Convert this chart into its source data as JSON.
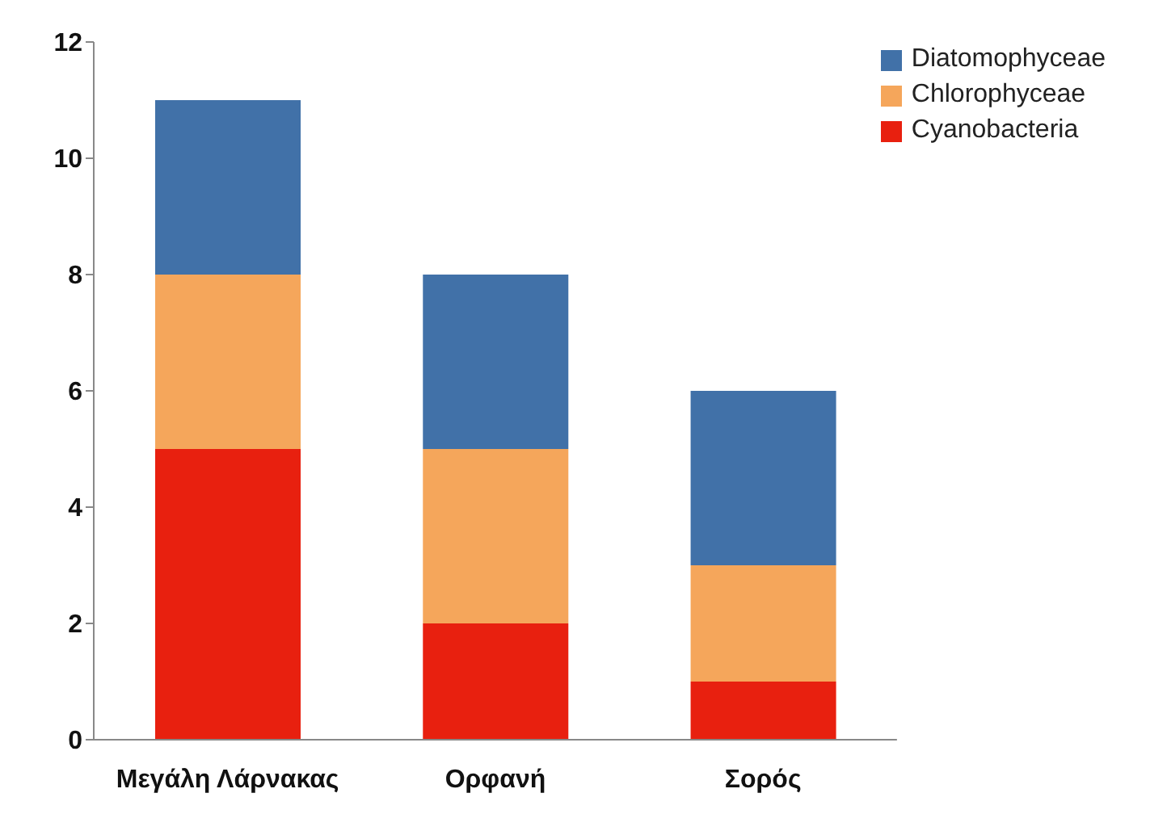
{
  "chart_data": {
    "type": "bar",
    "stacked": true,
    "categories": [
      "Μεγάλη Λάρνακας",
      "Ορφανή",
      "Σορός"
    ],
    "series": [
      {
        "name": "Cyanobacteria",
        "color": "#e8200f",
        "values": [
          5,
          2,
          1
        ]
      },
      {
        "name": "Chlorophyceae",
        "color": "#f5a65b",
        "values": [
          3,
          3,
          2
        ]
      },
      {
        "name": "Diatomophyceae",
        "color": "#4171a8",
        "values": [
          3,
          3,
          3
        ]
      }
    ],
    "ylim": [
      0,
      12
    ],
    "yticks": [
      0,
      2,
      4,
      6,
      8,
      10,
      12
    ],
    "grid": false,
    "legend": "top right"
  }
}
